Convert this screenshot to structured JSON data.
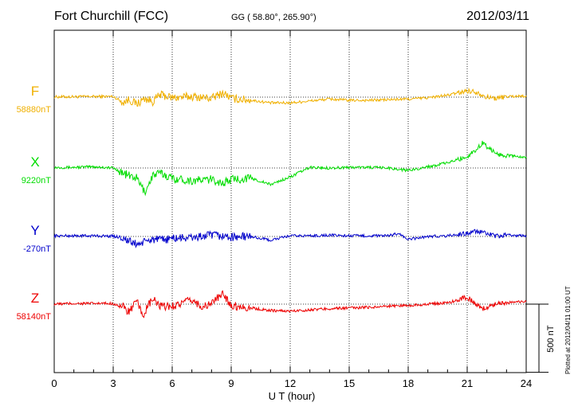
{
  "header": {
    "station": "Fort Churchill (FCC)",
    "coords": "GG ( 58.80°, 265.90°)",
    "date": "2012/03/11",
    "plotted": "Plotted at 2012/04/11 01:00 UT"
  },
  "chart_data": {
    "type": "line",
    "title": "Fort Churchill (FCC)",
    "xlabel": "U T (hour)",
    "xlim": [
      0,
      24
    ],
    "xticks": [
      "0",
      "3",
      "6",
      "9",
      "12",
      "15",
      "18",
      "21",
      "24"
    ],
    "grid": "vertical dotted lines every 3 hours, dotted baseline per component",
    "scale_bar": {
      "label": "500 nT",
      "value_nT": 500
    },
    "series": [
      {
        "name": "F",
        "baseline_label": "58880nT",
        "color": "#f0b000",
        "hours": [
          0,
          1,
          2,
          3,
          3.5,
          3.8,
          4.2,
          4.6,
          5,
          5.4,
          6,
          7,
          8,
          8.6,
          9,
          10,
          11,
          12,
          13,
          14,
          15,
          16,
          17,
          18,
          19,
          20,
          21,
          21.5,
          22,
          22.5,
          23,
          24
        ],
        "values": [
          2,
          3,
          5,
          5,
          -40,
          -20,
          -55,
          -10,
          -35,
          20,
          -5,
          5,
          -10,
          35,
          -10,
          -25,
          -45,
          -45,
          -30,
          -15,
          -25,
          -25,
          -20,
          -15,
          -5,
          15,
          50,
          40,
          0,
          -10,
          5,
          10
        ]
      },
      {
        "name": "X",
        "baseline_label": "9220nT",
        "color": "#00dd00",
        "hours": [
          0,
          1,
          2,
          3,
          3.5,
          3.8,
          4.2,
          4.6,
          4.8,
          5,
          5.4,
          6,
          7,
          8,
          8.6,
          9,
          10,
          11,
          12,
          13,
          14,
          15,
          16,
          17,
          18,
          19,
          20,
          21,
          21.5,
          21.8,
          22,
          22.5,
          23,
          24
        ],
        "values": [
          5,
          5,
          10,
          0,
          -40,
          -60,
          -80,
          -190,
          -130,
          -60,
          -40,
          -80,
          -100,
          -90,
          -120,
          -90,
          -80,
          -130,
          -70,
          5,
          0,
          5,
          5,
          0,
          -20,
          10,
          40,
          90,
          150,
          200,
          170,
          110,
          100,
          80
        ]
      },
      {
        "name": "Y",
        "baseline_label": "-270nT",
        "color": "#0000cc",
        "hours": [
          0,
          1,
          2,
          3,
          3.5,
          3.8,
          4.2,
          4.6,
          5,
          5.4,
          6,
          7,
          8,
          9,
          10,
          11,
          12,
          13,
          14,
          15,
          16,
          17,
          17.5,
          18,
          19,
          20,
          21,
          21.5,
          22,
          22.5,
          23,
          24
        ],
        "values": [
          5,
          5,
          5,
          2,
          -10,
          -40,
          -60,
          -45,
          -20,
          -30,
          -15,
          -10,
          10,
          -5,
          0,
          -30,
          5,
          5,
          10,
          5,
          5,
          5,
          25,
          -25,
          0,
          5,
          25,
          40,
          20,
          0,
          10,
          5
        ]
      },
      {
        "name": "Z",
        "baseline_label": "58140nT",
        "color": "#ee0000",
        "hours": [
          0,
          1,
          2,
          3,
          3.5,
          3.8,
          4.2,
          4.5,
          4.8,
          5,
          5.4,
          6,
          7,
          7.6,
          8,
          8.6,
          9,
          10,
          11,
          12,
          13,
          14,
          15,
          16,
          17,
          18,
          19,
          20,
          21,
          21.5,
          21.8,
          22,
          22.5,
          23,
          24
        ],
        "values": [
          0,
          5,
          5,
          5,
          -25,
          -60,
          20,
          -90,
          -10,
          40,
          -20,
          -15,
          30,
          -25,
          10,
          80,
          -10,
          -30,
          -50,
          -55,
          -45,
          -35,
          -30,
          -25,
          -15,
          -10,
          0,
          10,
          55,
          -10,
          -35,
          -30,
          10,
          10,
          20
        ]
      }
    ]
  }
}
